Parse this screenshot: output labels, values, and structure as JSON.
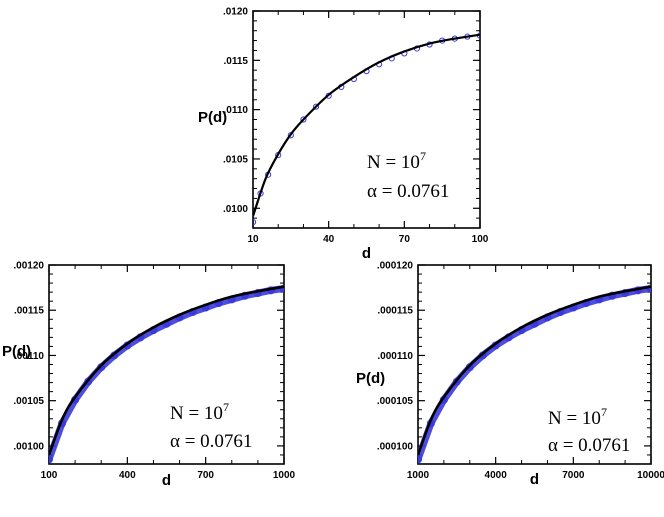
{
  "chart_data": [
    {
      "type": "scatter",
      "xlabel": "d",
      "ylabel": "P(d)",
      "xlim": [
        10,
        100
      ],
      "ylim": [
        0.0098,
        0.012
      ],
      "xticks": [
        "10",
        "40",
        "70",
        "100"
      ],
      "yticks": [
        ".0100",
        ".0105",
        ".0110",
        ".0115",
        ".0120"
      ],
      "annotation": {
        "n_label": "N = 10",
        "n_exp": "7",
        "alpha_label": "α = 0.0761"
      },
      "series": [
        {
          "kind": "markers",
          "marker": "open-circle",
          "color": "#3a3adc",
          "x": [
            10,
            13,
            16,
            20,
            25,
            30,
            35,
            40,
            45,
            50,
            55,
            60,
            65,
            70,
            75,
            80,
            85,
            90,
            95,
            100
          ],
          "y": [
            0.00986,
            0.01015,
            0.01034,
            0.01054,
            0.01074,
            0.0109,
            0.01103,
            0.01114,
            0.01123,
            0.01131,
            0.01139,
            0.01146,
            0.01152,
            0.01157,
            0.01162,
            0.01166,
            0.0117,
            0.01172,
            0.01174,
            0.01175
          ]
        },
        {
          "kind": "line",
          "color": "#000000",
          "x": [
            10,
            15,
            20,
            25,
            30,
            40,
            50,
            60,
            70,
            80,
            90,
            100
          ],
          "y": [
            0.00992,
            0.0103,
            0.01055,
            0.01075,
            0.0109,
            0.01115,
            0.01133,
            0.01148,
            0.01159,
            0.01167,
            0.01172,
            0.01176
          ]
        }
      ]
    },
    {
      "type": "scatter",
      "xlabel": "d",
      "ylabel": "P(d)",
      "xlim": [
        100,
        1000
      ],
      "ylim": [
        0.00098,
        0.0012
      ],
      "xticks": [
        "100",
        "400",
        "700",
        "1000"
      ],
      "yticks": [
        ".00100",
        ".00105",
        ".00110",
        ".00115",
        ".00120"
      ],
      "annotation": {
        "n_label": "N = 10",
        "n_exp": "7",
        "alpha_label": "α = 0.0761"
      },
      "series": [
        {
          "kind": "markers",
          "marker": "filled-circle",
          "color": "#3a3adc",
          "x": [
            100,
            150,
            200,
            250,
            300,
            350,
            400,
            450,
            500,
            550,
            600,
            650,
            700,
            750,
            800,
            850,
            900,
            950,
            1000
          ],
          "y": [
            0.000985,
            0.001025,
            0.001051,
            0.001071,
            0.001087,
            0.0011,
            0.001111,
            0.00112,
            0.001128,
            0.001135,
            0.001142,
            0.001148,
            0.001153,
            0.001158,
            0.001162,
            0.001166,
            0.001169,
            0.001172,
            0.001174
          ]
        },
        {
          "kind": "line",
          "color": "#000000",
          "x": [
            100,
            150,
            200,
            300,
            400,
            500,
            600,
            700,
            800,
            900,
            1000
          ],
          "y": [
            0.00099,
            0.001029,
            0.001054,
            0.001089,
            0.001113,
            0.001131,
            0.001145,
            0.001156,
            0.001165,
            0.001171,
            0.001176
          ]
        }
      ]
    },
    {
      "type": "scatter",
      "xlabel": "d",
      "ylabel": "P(d)",
      "xlim": [
        1000,
        10000
      ],
      "ylim": [
        9.8e-05,
        0.00012
      ],
      "xticks": [
        "1000",
        "4000",
        "7000",
        "10000"
      ],
      "yticks": [
        ".000100",
        ".000105",
        ".000110",
        ".000115",
        ".000120"
      ],
      "annotation": {
        "n_label": "N = 10",
        "n_exp": "7",
        "alpha_label": "α = 0.0761"
      },
      "series": [
        {
          "kind": "markers",
          "marker": "filled-circle",
          "color": "#3a3adc",
          "x": [
            1000,
            1500,
            2000,
            2500,
            3000,
            3500,
            4000,
            4500,
            5000,
            5500,
            6000,
            6500,
            7000,
            7500,
            8000,
            8500,
            9000,
            9500,
            10000
          ],
          "y": [
            9.85e-05,
            0.0001025,
            0.0001051,
            0.0001071,
            0.0001087,
            0.00011,
            0.0001111,
            0.000112,
            0.0001128,
            0.0001135,
            0.0001142,
            0.0001148,
            0.0001153,
            0.0001158,
            0.0001162,
            0.0001166,
            0.0001169,
            0.0001172,
            0.0001174
          ]
        },
        {
          "kind": "line",
          "color": "#000000",
          "x": [
            1000,
            1500,
            2000,
            3000,
            4000,
            5000,
            6000,
            7000,
            8000,
            9000,
            10000
          ],
          "y": [
            9.9e-05,
            0.0001029,
            0.0001054,
            0.0001089,
            0.0001113,
            0.0001131,
            0.0001145,
            0.0001156,
            0.0001165,
            0.0001171,
            0.0001176
          ]
        }
      ]
    }
  ]
}
